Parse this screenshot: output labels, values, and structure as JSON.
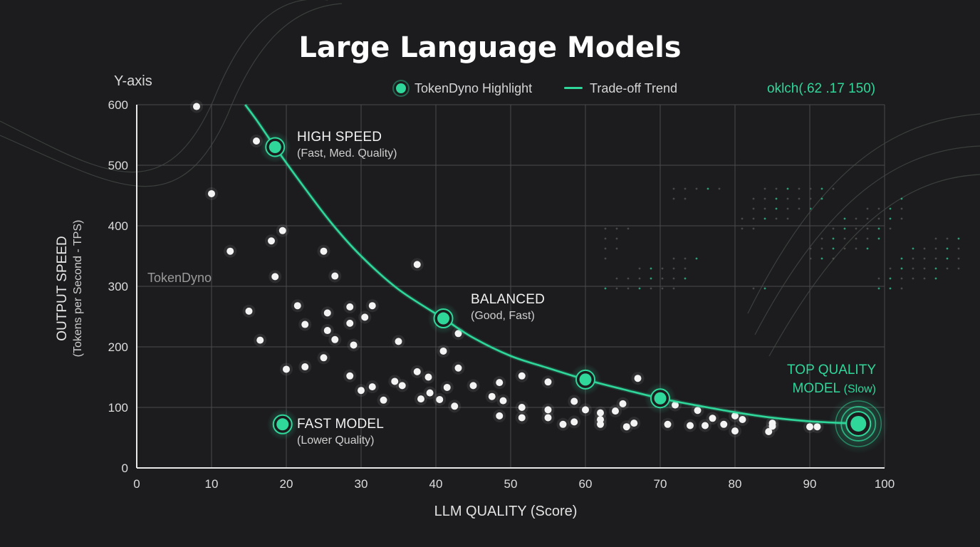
{
  "chart_data": {
    "type": "scatter",
    "title": "Large Language Models",
    "xlabel": "LLM QUALITY (Score)",
    "ylabel": "OUTPUT SPEED",
    "ylabel_sub": "(Tokens per Second - TPS)",
    "y_axis_word": "Y-axis",
    "xlim": [
      0,
      100
    ],
    "ylim": [
      0,
      600
    ],
    "x_ticks": [
      0,
      10,
      20,
      30,
      40,
      50,
      60,
      70,
      80,
      90,
      100
    ],
    "y_ticks": [
      0,
      100,
      200,
      300,
      400,
      500,
      600
    ],
    "grid": true,
    "legend_position": "top",
    "legend": [
      {
        "label": "TokenDyno Highlight",
        "kind": "marker"
      },
      {
        "label": "Trade-off Trend",
        "kind": "line"
      }
    ],
    "accent_color": "#2fd79a",
    "color_note": "oklch(.62 .17 150)",
    "watermark": "TokenDyno",
    "series": [
      {
        "name": "Models",
        "points": [
          [
            8,
            597
          ],
          [
            16,
            540
          ],
          [
            10,
            453
          ],
          [
            12.5,
            358
          ],
          [
            18,
            375
          ],
          [
            19.5,
            392
          ],
          [
            18.5,
            316
          ],
          [
            15,
            259
          ],
          [
            16.5,
            211
          ],
          [
            21.5,
            268
          ],
          [
            22.5,
            237
          ],
          [
            20,
            163
          ],
          [
            22.5,
            167
          ],
          [
            25,
            358
          ],
          [
            26.5,
            317
          ],
          [
            25.5,
            256
          ],
          [
            25.5,
            227
          ],
          [
            26.5,
            212
          ],
          [
            25,
            182
          ],
          [
            28.5,
            266
          ],
          [
            28.5,
            239
          ],
          [
            29,
            203
          ],
          [
            28.5,
            152
          ],
          [
            30,
            128
          ],
          [
            30.5,
            249
          ],
          [
            31.5,
            268
          ],
          [
            31.5,
            134
          ],
          [
            33,
            112
          ],
          [
            34.5,
            143
          ],
          [
            35,
            209
          ],
          [
            35.5,
            136
          ],
          [
            37.5,
            336
          ],
          [
            37.5,
            159
          ],
          [
            38,
            114
          ],
          [
            39,
            150
          ],
          [
            39.2,
            124
          ],
          [
            40.5,
            113
          ],
          [
            41,
            193
          ],
          [
            41.5,
            133
          ],
          [
            42.5,
            102
          ],
          [
            43,
            222
          ],
          [
            43,
            165
          ],
          [
            45,
            136
          ],
          [
            47.5,
            118
          ],
          [
            48.5,
            141
          ],
          [
            48.5,
            86
          ],
          [
            49,
            111
          ],
          [
            51.5,
            152
          ],
          [
            51.5,
            100
          ],
          [
            51.5,
            83
          ],
          [
            55,
            142
          ],
          [
            55,
            96
          ],
          [
            55,
            83
          ],
          [
            57,
            72
          ],
          [
            58.5,
            110
          ],
          [
            58.5,
            76
          ],
          [
            60,
            96
          ],
          [
            62,
            91
          ],
          [
            62,
            80
          ],
          [
            62,
            72
          ],
          [
            64,
            94
          ],
          [
            65,
            106
          ],
          [
            65.5,
            68
          ],
          [
            66.5,
            74
          ],
          [
            67,
            148
          ],
          [
            71,
            72
          ],
          [
            72,
            104
          ],
          [
            74,
            70
          ],
          [
            75,
            95
          ],
          [
            76,
            70
          ],
          [
            77,
            82
          ],
          [
            78.5,
            72
          ],
          [
            80,
            86
          ],
          [
            81,
            80
          ],
          [
            80,
            61
          ],
          [
            84.5,
            60
          ],
          [
            85,
            74
          ],
          [
            85,
            69
          ],
          [
            90,
            68
          ],
          [
            91,
            68
          ]
        ]
      }
    ],
    "trend": [
      [
        14.5,
        600
      ],
      [
        16,
        575
      ],
      [
        18.5,
        530
      ],
      [
        22,
        470
      ],
      [
        26,
        405
      ],
      [
        30,
        350
      ],
      [
        35,
        295
      ],
      [
        41,
        247
      ],
      [
        45,
        215
      ],
      [
        50,
        185
      ],
      [
        55,
        165
      ],
      [
        60,
        146
      ],
      [
        65,
        130
      ],
      [
        70,
        115
      ],
      [
        75,
        103
      ],
      [
        80,
        92
      ],
      [
        85,
        83
      ],
      [
        90,
        77
      ],
      [
        96.5,
        73
      ]
    ],
    "highlights": [
      {
        "x": 18.5,
        "y": 530,
        "label": "HIGH SPEED",
        "sub": "(Fast, Med. Quality)"
      },
      {
        "x": 41,
        "y": 247,
        "label": "BALANCED",
        "sub": "(Good, Fast)"
      },
      {
        "x": 60,
        "y": 146,
        "label": "",
        "sub": ""
      },
      {
        "x": 70,
        "y": 115,
        "label": "",
        "sub": ""
      },
      {
        "x": 96.5,
        "y": 73,
        "label": "TOP QUALITY MODEL",
        "sub": "(Slow)"
      },
      {
        "x": 19.5,
        "y": 72,
        "label": "FAST MODEL",
        "sub": "(Lower Quality)"
      }
    ],
    "annotations": {
      "high_speed": {
        "title": "HIGH SPEED",
        "sub": "(Fast, Med. Quality)"
      },
      "balanced": {
        "title": "BALANCED",
        "sub": "(Good, Fast)"
      },
      "fast_model": {
        "title": "FAST MODEL",
        "sub": "(Lower Quality)"
      },
      "top_quality_line1": "TOP QUALITY",
      "top_quality_line2": "MODEL",
      "top_quality_sub": "(Slow)"
    }
  }
}
